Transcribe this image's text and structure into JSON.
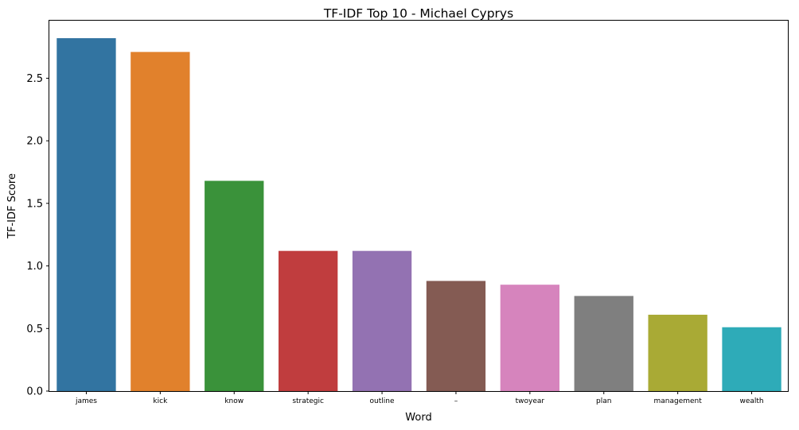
{
  "chart_data": {
    "type": "bar",
    "title": "TF-IDF Top 10 - Michael Cyprys",
    "xlabel": "Word",
    "ylabel": "TF-IDF Score",
    "categories": [
      "james",
      "kick",
      "know",
      "strategic",
      "outline",
      "–",
      "twoyear",
      "plan",
      "management",
      "wealth"
    ],
    "values": [
      2.82,
      2.71,
      1.68,
      1.12,
      1.12,
      0.88,
      0.85,
      0.76,
      0.61,
      0.51
    ],
    "colors": [
      "#3274a1",
      "#e1812c",
      "#3a923a",
      "#c03d3e",
      "#9372b2",
      "#845b53",
      "#d684bd",
      "#7f7f7f",
      "#a9aa35",
      "#2eabb8"
    ],
    "yticks": [
      0.0,
      0.5,
      1.0,
      1.5,
      2.0,
      2.5
    ],
    "ytick_labels": [
      "0.0",
      "0.5",
      "1.0",
      "1.5",
      "2.0",
      "2.5"
    ],
    "ylim": [
      0,
      2.96
    ],
    "grid": false,
    "legend": "none"
  }
}
